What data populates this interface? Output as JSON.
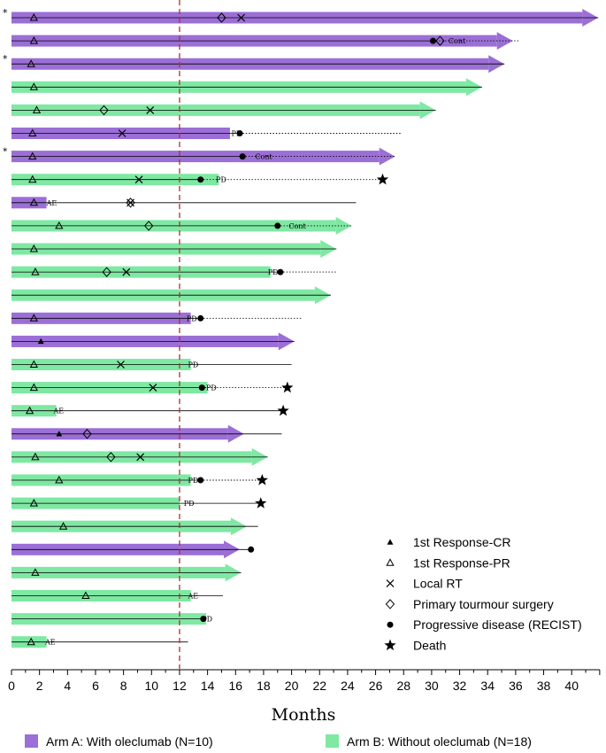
{
  "chart_data": {
    "type": "swimmer",
    "xlabel": "Months",
    "xlim": [
      0,
      42
    ],
    "xticks": [
      0,
      2,
      4,
      6,
      8,
      10,
      12,
      14,
      16,
      18,
      20,
      22,
      24,
      26,
      28,
      30,
      32,
      34,
      36,
      38,
      40
    ],
    "reference_line": 12,
    "colors": {
      "arm_a": "#9b6fd6",
      "arm_b": "#7fe8a3",
      "reference_line": "#b03030"
    },
    "arms": {
      "A": "Arm A: With oleclumab (N=10)",
      "B": "Arm B: Without oleclumab (N=18)"
    },
    "legend": [
      {
        "symbol": "filled-triangle",
        "label": "1st Response-CR"
      },
      {
        "symbol": "open-triangle",
        "label": "1st Response-PR"
      },
      {
        "symbol": "cross",
        "label": "Local RT"
      },
      {
        "symbol": "open-diamond",
        "label": "Primary tourmour surgery"
      },
      {
        "symbol": "filled-circle",
        "label": "Progressive disease (RECIST)"
      },
      {
        "symbol": "star",
        "label": "Death"
      }
    ],
    "patients": [
      {
        "arm": "A",
        "bar_end": 41.9,
        "follow": 41.9,
        "arrow": true,
        "asterisk": true,
        "pr": 1.6,
        "surgery": 15.0,
        "rt": [
          16.4
        ]
      },
      {
        "arm": "A",
        "bar_end": 35.8,
        "follow": 36.2,
        "arrow": true,
        "pr": 1.6,
        "pd": 30.1,
        "surgery": 30.6,
        "label": "Cont",
        "label_x": 31.2
      },
      {
        "arm": "A",
        "bar_end": 35.2,
        "follow": 35.2,
        "arrow": true,
        "asterisk": true,
        "pr": 1.4
      },
      {
        "arm": "B",
        "bar_end": 33.6,
        "follow": 33.6,
        "arrow": true,
        "pr": 1.6
      },
      {
        "arm": "B",
        "bar_end": 30.3,
        "follow": 30.3,
        "arrow": true,
        "pr": 1.8,
        "surgery": 6.6,
        "rt": [
          9.9
        ]
      },
      {
        "arm": "A",
        "bar_end": 15.6,
        "follow": 27.8,
        "pd": 16.3,
        "pr": 1.5,
        "rt": [
          7.9
        ],
        "label": "PD",
        "label_x": 15.7
      },
      {
        "arm": "A",
        "bar_end": 27.4,
        "follow": 27.4,
        "arrow": true,
        "asterisk": true,
        "pr": 1.5,
        "pd": 16.5,
        "label": "Cont",
        "label_x": 17.4
      },
      {
        "arm": "B",
        "bar_end": 14.8,
        "follow": 26.5,
        "pr": 1.5,
        "rt": [
          9.1
        ],
        "pd": 13.5,
        "label": "PD",
        "label_x": 14.6,
        "death": 26.5
      },
      {
        "arm": "A",
        "bar_end": 2.5,
        "follow": 24.6,
        "pr": 1.6,
        "rt": [
          8.5
        ],
        "surgery": 8.5,
        "label": "AE",
        "label_x": 2.5
      },
      {
        "arm": "B",
        "bar_end": 24.3,
        "follow": 24.3,
        "arrow": true,
        "pr": 3.4,
        "surgery": 9.8,
        "pd": 19.0,
        "label": "Cont",
        "label_x": 19.8
      },
      {
        "arm": "B",
        "bar_end": 23.2,
        "follow": 23.2,
        "arrow": true,
        "pr": 1.6
      },
      {
        "arm": "B",
        "bar_end": 18.5,
        "follow": 23.2,
        "pr": 1.7,
        "surgery": 6.8,
        "rt": [
          8.2
        ],
        "pd": 19.2,
        "label": "PD",
        "label_x": 18.3
      },
      {
        "arm": "B",
        "bar_end": 22.8,
        "follow": 22.8,
        "arrow": true
      },
      {
        "arm": "A",
        "bar_end": 12.8,
        "follow": 20.8,
        "pr": 1.6,
        "pd": 13.5,
        "label": "PD",
        "label_x": 12.5
      },
      {
        "arm": "A",
        "bar_end": 20.2,
        "follow": 20.2,
        "arrow": true,
        "cr": 2.1
      },
      {
        "arm": "B",
        "bar_end": 12.8,
        "follow": 20.0,
        "pr": 1.6,
        "rt": [
          7.8
        ],
        "label": "PD",
        "label_x": 12.6
      },
      {
        "arm": "B",
        "bar_end": 14.0,
        "follow": 19.7,
        "pr": 1.6,
        "rt": [
          10.1
        ],
        "pd": 13.6,
        "label": "PD",
        "label_x": 13.9,
        "death": 19.7
      },
      {
        "arm": "B",
        "bar_end": 3.2,
        "follow": 19.4,
        "pr": 1.3,
        "label": "AE",
        "label_x": 3.0,
        "death": 19.4
      },
      {
        "arm": "A",
        "bar_end": 16.6,
        "follow": 19.3,
        "arrow": true,
        "cr": 3.4,
        "surgery": 5.4
      },
      {
        "arm": "B",
        "bar_end": 18.3,
        "follow": 18.3,
        "arrow": true,
        "pr": 1.7,
        "surgery": 7.1,
        "rt": [
          9.2
        ]
      },
      {
        "arm": "B",
        "bar_end": 12.8,
        "follow": 17.9,
        "pr": 3.4,
        "pd": 13.5,
        "label": "PD",
        "label_x": 12.6,
        "death": 17.9
      },
      {
        "arm": "B",
        "bar_end": 12.0,
        "follow": 17.8,
        "pr": 1.6,
        "label": "PD",
        "label_x": 12.3,
        "death": 17.8
      },
      {
        "arm": "B",
        "bar_end": 16.8,
        "follow": 17.6,
        "arrow": true,
        "pr": 3.7
      },
      {
        "arm": "A",
        "bar_end": 16.3,
        "follow": 17.1,
        "arrow": true,
        "pd": 17.1
      },
      {
        "arm": "B",
        "bar_end": 16.4,
        "follow": 16.4,
        "arrow": true,
        "pr": 1.7
      },
      {
        "arm": "B",
        "bar_end": 12.8,
        "follow": 15.1,
        "pr": 5.3,
        "label": "AE",
        "label_x": 12.6
      },
      {
        "arm": "B",
        "bar_end": 13.9,
        "follow": 13.9,
        "pd": 13.7,
        "label": "PD",
        "label_x": 13.6
      },
      {
        "arm": "B",
        "bar_end": 2.5,
        "follow": 12.6,
        "pr": 1.4,
        "label": "AE",
        "label_x": 2.4
      }
    ]
  }
}
